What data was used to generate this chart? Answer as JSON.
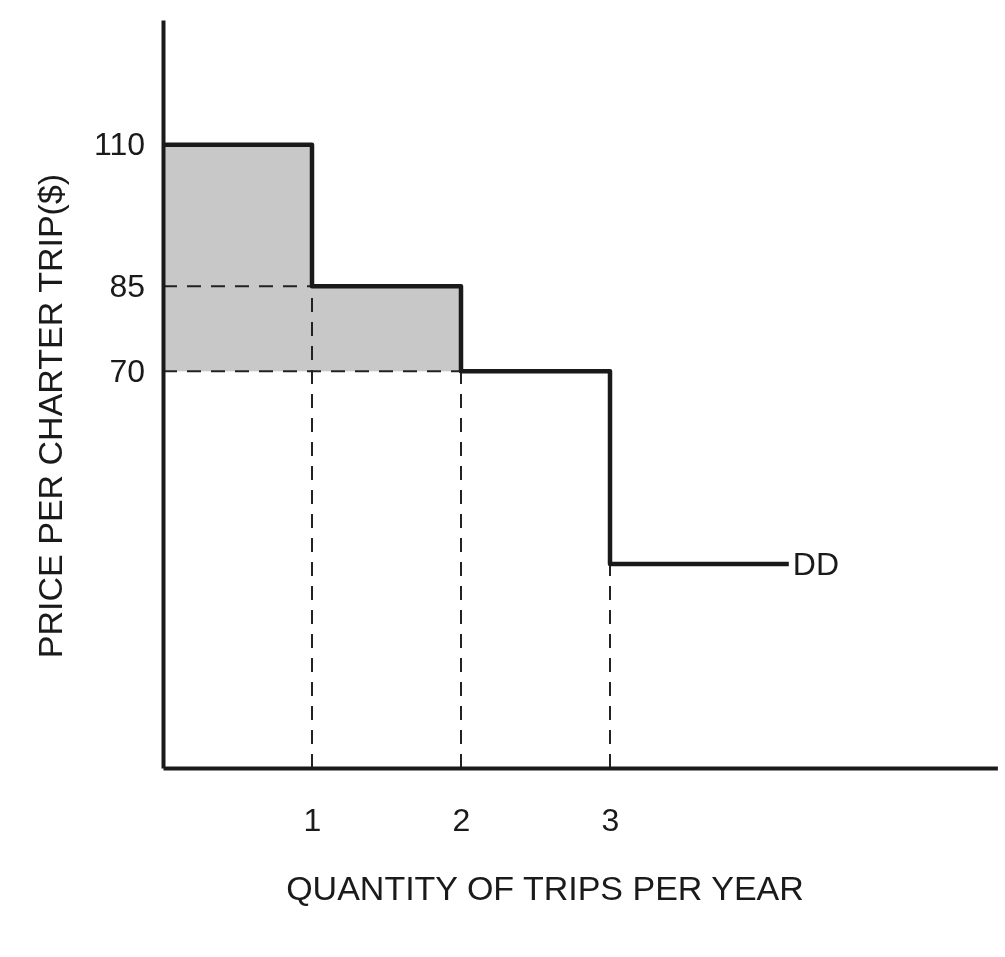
{
  "chart_data": {
    "type": "step",
    "xlabel": "QUANTITY OF TRIPS PER YEAR",
    "ylabel": "PRICE PER CHARTER TRIP($)",
    "xlim": [
      0,
      5.6
    ],
    "ylim": [
      0,
      132
    ],
    "xticks": [
      1,
      2,
      3
    ],
    "yticks": [
      70,
      85,
      110
    ],
    "series": [
      {
        "type": "bar",
        "x": [
          0.5,
          1.5
        ],
        "values": [
          40,
          15
        ],
        "base": [
          70,
          70
        ],
        "color": "#c8c8c8"
      },
      {
        "type": "line",
        "x": [
          0,
          1
        ],
        "values": [
          85,
          85
        ],
        "color": "#222222",
        "line_style": "dashed"
      },
      {
        "type": "line",
        "x": [
          0,
          2
        ],
        "values": [
          70,
          70
        ],
        "color": "#222222",
        "line_style": "dashed"
      },
      {
        "type": "line",
        "x": [
          1,
          1
        ],
        "values": [
          0,
          85
        ],
        "color": "#222222",
        "line_style": "dashed"
      },
      {
        "type": "line",
        "x": [
          2,
          2
        ],
        "values": [
          0,
          70
        ],
        "color": "#222222",
        "line_style": "dashed"
      },
      {
        "type": "line",
        "x": [
          3,
          3
        ],
        "values": [
          0,
          36
        ],
        "color": "#222222",
        "line_style": "dashed"
      },
      {
        "x": [
          0,
          1,
          2,
          3,
          4.2
        ],
        "values": [
          110,
          85,
          70,
          36,
          36
        ],
        "color": "#1a1a1a"
      }
    ],
    "annotations": [
      {
        "text": "DD",
        "x": 4.2,
        "y": 36
      }
    ]
  }
}
